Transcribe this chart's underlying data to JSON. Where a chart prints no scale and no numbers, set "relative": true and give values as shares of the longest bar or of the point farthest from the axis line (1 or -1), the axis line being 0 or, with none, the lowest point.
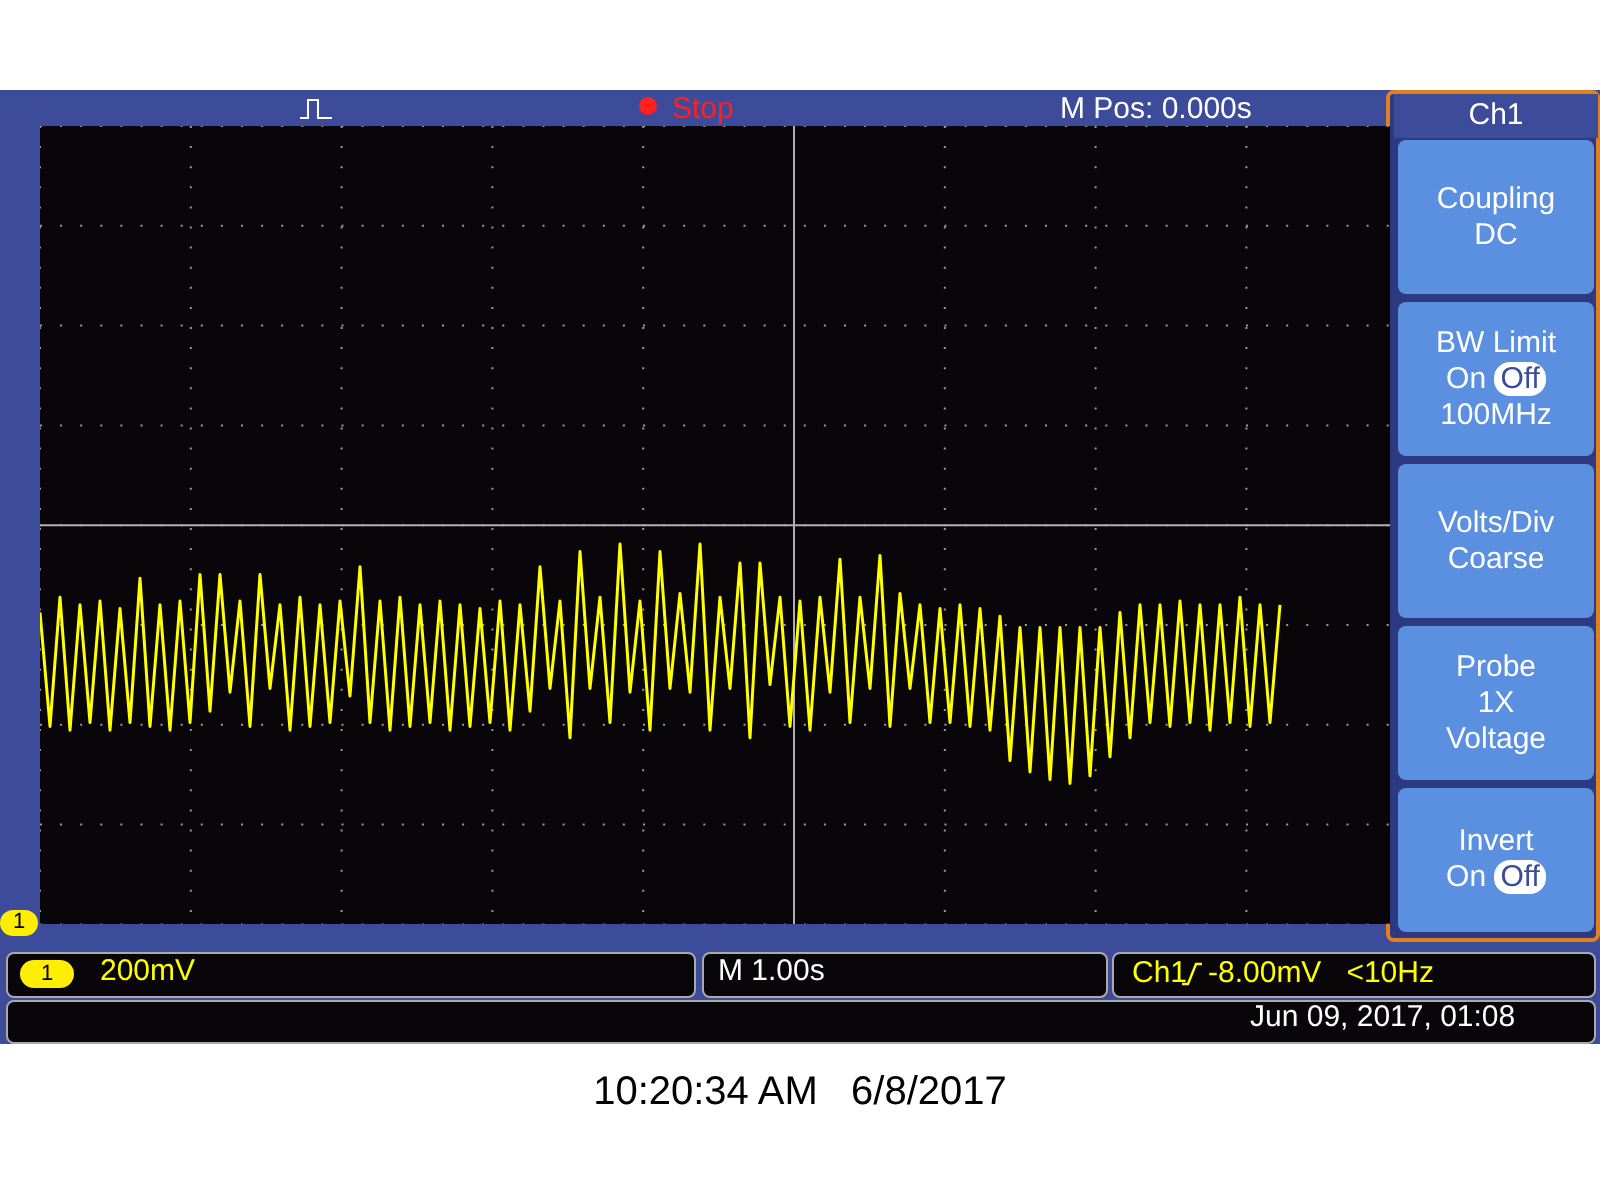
{
  "chart_data": {
    "type": "line",
    "relative": true,
    "grid": true,
    "categories": [
      null,
      null,
      null,
      null,
      null,
      null,
      null,
      null,
      null,
      null,
      null,
      null,
      null,
      null,
      null,
      null,
      null,
      null,
      null,
      null,
      null,
      null,
      null,
      null,
      null,
      null,
      null,
      null,
      null,
      null,
      null,
      null,
      null,
      null,
      null,
      null,
      null,
      null,
      null,
      null,
      null,
      null,
      null,
      null,
      null,
      null,
      null,
      null,
      null,
      null,
      null,
      null,
      null,
      null,
      null,
      null,
      null,
      null,
      null,
      null,
      null,
      null,
      null,
      null,
      null,
      null,
      null,
      null,
      null,
      null,
      null,
      null,
      null,
      null,
      null,
      null,
      null,
      null,
      null,
      null,
      null,
      null,
      null,
      null,
      null,
      null,
      null,
      null,
      null,
      null,
      null,
      null,
      null,
      null,
      null,
      null,
      null,
      null,
      null,
      null,
      null,
      null,
      null,
      null,
      null,
      null,
      null,
      null,
      null,
      null,
      null,
      null,
      null,
      null,
      null,
      null,
      null,
      null,
      null,
      null,
      null,
      null,
      null,
      null,
      null,
      null,
      null,
      null,
      null,
      null,
      null,
      null,
      null,
      null,
      null,
      null
    ],
    "series": [
      {
        "color": "#ffff00",
        "values": [
          0.82,
          0.52,
          0.86,
          0.51,
          0.84,
          0.53,
          0.85,
          0.51,
          0.83,
          0.53,
          0.91,
          0.52,
          0.84,
          0.51,
          0.85,
          0.53,
          0.92,
          0.56,
          0.92,
          0.61,
          0.85,
          0.52,
          0.92,
          0.62,
          0.84,
          0.51,
          0.86,
          0.52,
          0.84,
          0.53,
          0.85,
          0.6,
          0.94,
          0.53,
          0.85,
          0.51,
          0.86,
          0.52,
          0.84,
          0.53,
          0.85,
          0.51,
          0.84,
          0.52,
          0.83,
          0.53,
          0.85,
          0.51,
          0.84,
          0.56,
          0.94,
          0.62,
          0.85,
          0.49,
          0.98,
          0.62,
          0.86,
          0.53,
          1,
          0.61,
          0.85,
          0.51,
          0.98,
          0.62,
          0.87,
          0.61,
          1,
          0.51,
          0.86,
          0.62,
          0.95,
          0.49,
          0.95,
          0.63,
          0.86,
          0.52,
          0.85,
          0.51,
          0.86,
          0.61,
          0.96,
          0.53,
          0.86,
          0.62,
          0.97,
          0.52,
          0.87,
          0.62,
          0.84,
          0.53,
          0.83,
          0.53,
          0.84,
          0.52,
          0.83,
          0.51,
          0.81,
          0.43,
          0.78,
          0.4,
          0.78,
          0.38,
          0.78,
          0.37,
          0.78,
          0.39,
          0.78,
          0.44,
          0.82,
          0.49,
          0.84,
          0.53,
          0.84,
          0.52,
          0.85,
          0.53,
          0.84,
          0.51,
          0.84,
          0.53,
          0.86,
          0.52,
          0.84,
          0.53,
          0.84,
          null,
          null,
          null,
          null,
          null,
          null,
          null,
          null,
          null,
          null,
          null
        ]
      }
    ],
    "annotations": [
      "Stop",
      "M Pos: 0.000s",
      "Ch1",
      "Coupling\nDC",
      "BW Limit\nOn Off\n100MHz",
      "Volts/Div\nCoarse",
      "Probe\n1X\nVoltage",
      "Invert\nOn Off",
      "1",
      "1",
      "200mV",
      "M 1.00s",
      "Ch1",
      "-8.00mV   <10Hz",
      "Jun 09, 2017, 01:08",
      "10:20:34 AM   6/8/2017"
    ]
  }
}
